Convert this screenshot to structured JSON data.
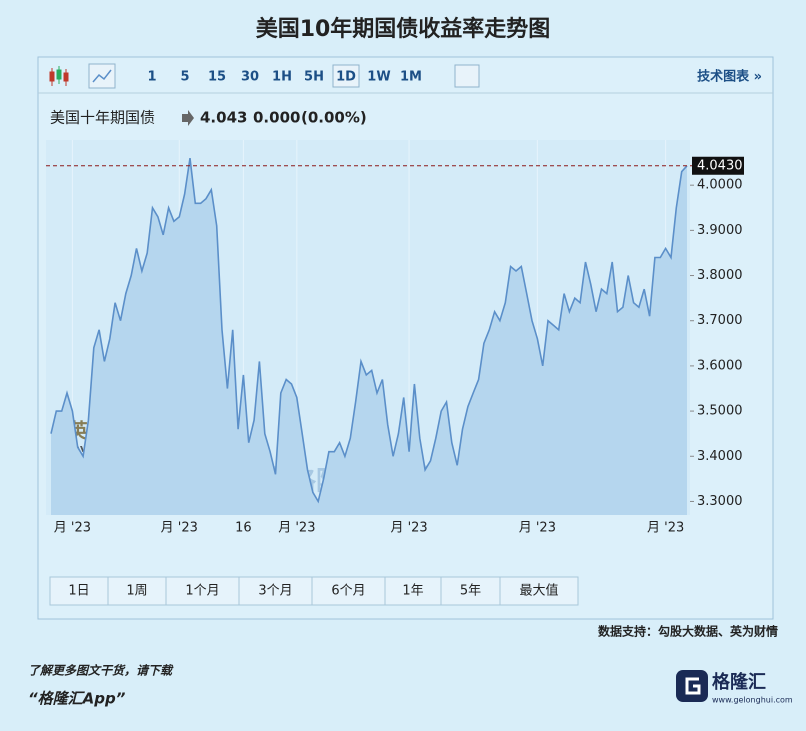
{
  "chart_data": {
    "type": "area-line",
    "title": "美国10年期国债收益率走势图",
    "instrument": {
      "name": "美国十年期国债",
      "price": "4.043",
      "change": "0.000",
      "change_pct": "(0.00%)"
    },
    "toolbar": {
      "intervals": [
        "1",
        "5",
        "15",
        "30",
        "1H",
        "5H",
        "1D",
        "1W",
        "1M"
      ],
      "active_index": 6,
      "tech_chart": "技术图表 »"
    },
    "periods": [
      "1日",
      "1周",
      "1个月",
      "3个月",
      "6个月",
      "1年",
      "5年",
      "最大值"
    ],
    "categories": [
      null,
      null,
      null,
      null,
      "月 '23",
      null,
      null,
      null,
      null,
      null,
      null,
      null,
      null,
      null,
      null,
      null,
      null,
      null,
      null,
      null,
      null,
      null,
      null,
      null,
      "月 '23",
      null,
      null,
      null,
      null,
      null,
      null,
      null,
      null,
      null,
      null,
      null,
      "16",
      null,
      null,
      null,
      null,
      null,
      null,
      null,
      null,
      null,
      "月 '23",
      null,
      null,
      null,
      null,
      null,
      null,
      null,
      null,
      null,
      null,
      null,
      null,
      null,
      null,
      null,
      null,
      null,
      null,
      null,
      null,
      "月 '23",
      null,
      null,
      null,
      null,
      null,
      null,
      null,
      null,
      null,
      null,
      null,
      null,
      null,
      null,
      null,
      null,
      null,
      null,
      null,
      null,
      null,
      null,
      null,
      "月 '23",
      null,
      null,
      null,
      null,
      null,
      null,
      null,
      null,
      null,
      null,
      null,
      null,
      null,
      null,
      null,
      null,
      null,
      null,
      null,
      null,
      null,
      null,
      null,
      "月 '23",
      null,
      null,
      null,
      null
    ],
    "series": [
      {
        "color": "#5b8fc9",
        "fill": "#b5d6ee",
        "values": [
          3.45,
          3.5,
          3.5,
          3.54,
          3.5,
          3.42,
          3.4,
          3.48,
          3.64,
          3.68,
          3.61,
          3.66,
          3.74,
          3.7,
          3.76,
          3.8,
          3.86,
          3.81,
          3.85,
          3.95,
          3.93,
          3.89,
          3.95,
          3.92,
          3.93,
          3.98,
          4.06,
          3.96,
          3.96,
          3.97,
          3.99,
          3.91,
          3.68,
          3.55,
          3.68,
          3.46,
          3.58,
          3.43,
          3.48,
          3.61,
          3.45,
          3.41,
          3.36,
          3.54,
          3.57,
          3.56,
          3.53,
          3.45,
          3.37,
          3.32,
          3.3,
          3.35,
          3.41,
          3.41,
          3.43,
          3.4,
          3.44,
          3.52,
          3.61,
          3.58,
          3.59,
          3.54,
          3.57,
          3.47,
          3.4,
          3.45,
          3.53,
          3.41,
          3.56,
          3.44,
          3.37,
          3.39,
          3.44,
          3.5,
          3.52,
          3.43,
          3.38,
          3.46,
          3.51,
          3.54,
          3.57,
          3.65,
          3.68,
          3.72,
          3.7,
          3.74,
          3.82,
          3.81,
          3.82,
          3.76,
          3.7,
          3.66,
          3.6,
          3.7,
          3.69,
          3.68,
          3.76,
          3.72,
          3.75,
          3.74,
          3.83,
          3.78,
          3.72,
          3.77,
          3.76,
          3.83,
          3.72,
          3.73,
          3.8,
          3.74,
          3.73,
          3.77,
          3.71,
          3.84,
          3.84,
          3.86,
          3.84,
          3.95,
          4.03,
          4.043
        ]
      }
    ],
    "current": {
      "value": 4.043,
      "label": "4.0430"
    },
    "ylim": [
      3.27,
      4.1
    ],
    "yticks": [
      {
        "value": 3.3,
        "label": "3.3000"
      },
      {
        "value": 3.4,
        "label": "3.4000"
      },
      {
        "value": 3.5,
        "label": "3.5000"
      },
      {
        "value": 3.6,
        "label": "3.6000"
      },
      {
        "value": 3.7,
        "label": "3.7000"
      },
      {
        "value": 3.8,
        "label": "3.8000"
      },
      {
        "value": 3.9,
        "label": "3.9000"
      },
      {
        "value": 4,
        "label": "4.0000"
      }
    ],
    "watermarks": {
      "yingwei": "英为财情",
      "investing": "Investing.com",
      "gelonghui": "格隆汇",
      "gelonghui_url": "www.gelonghui.com",
      "gogu": "勾股大数据",
      "gogu_url": "www.gogudata.com"
    },
    "source": "数据支持：勾股大数据、英为财情"
  },
  "footer": {
    "line1": "了解更多图文干货，请下载",
    "line2": "“格隆汇App”",
    "logo_text": "格隆汇",
    "logo_url": "www.gelonghui.com"
  }
}
